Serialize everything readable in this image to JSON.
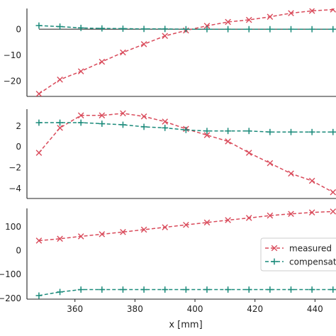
{
  "chart_data": [
    {
      "type": "line",
      "x": [
        348,
        355,
        362,
        369,
        376,
        383,
        390,
        397,
        404,
        411,
        418,
        425,
        432,
        439,
        446
      ],
      "series": [
        {
          "name": "measured",
          "values": [
            -25.0,
            -19.5,
            -16.3,
            -12.6,
            -9.0,
            -5.8,
            -2.6,
            -0.5,
            1.3,
            2.8,
            3.6,
            4.8,
            6.2,
            7.1,
            7.6
          ],
          "color": "#d94a5a",
          "marker": "x",
          "linestyle": "dashed"
        },
        {
          "name": "compensated",
          "values": [
            1.4,
            1.0,
            0.5,
            0.3,
            0.2,
            0.1,
            0.1,
            0.0,
            0.0,
            0.0,
            0.0,
            0.0,
            0.0,
            0.0,
            0.0
          ],
          "color": "#1a8a7a",
          "marker": "+",
          "linestyle": "dashed"
        }
      ],
      "reference_line": 0,
      "ylim": [
        -26,
        8
      ],
      "yticks": [
        0,
        -10,
        -20
      ],
      "ytick_labels": [
        "0",
        "−10",
        "−20"
      ],
      "ylabel": "",
      "xlabel": ""
    },
    {
      "type": "line",
      "x": [
        348,
        355,
        362,
        369,
        376,
        383,
        390,
        397,
        404,
        411,
        418,
        425,
        432,
        439,
        446
      ],
      "series": [
        {
          "name": "measured",
          "values": [
            -0.6,
            1.8,
            3.0,
            3.0,
            3.2,
            2.9,
            2.4,
            1.7,
            1.1,
            0.5,
            -0.6,
            -1.6,
            -2.6,
            -3.3,
            -4.4
          ],
          "color": "#d94a5a",
          "marker": "x",
          "linestyle": "dashed"
        },
        {
          "name": "compensated",
          "values": [
            2.3,
            2.3,
            2.3,
            2.2,
            2.1,
            1.9,
            1.8,
            1.6,
            1.5,
            1.5,
            1.5,
            1.4,
            1.4,
            1.4,
            1.4
          ],
          "color": "#1a8a7a",
          "marker": "+",
          "linestyle": "dashed"
        }
      ],
      "ylim": [
        -5,
        3.6
      ],
      "yticks": [
        2,
        0,
        -2,
        -4
      ],
      "ytick_labels": [
        "2",
        "0",
        "−2",
        "−4"
      ],
      "ylabel": "",
      "xlabel": ""
    },
    {
      "type": "line",
      "x": [
        348,
        355,
        362,
        369,
        376,
        383,
        390,
        397,
        404,
        411,
        418,
        425,
        432,
        439,
        446
      ],
      "series": [
        {
          "name": "measured",
          "values": [
            40,
            48,
            58,
            67,
            76,
            86,
            96,
            106,
            116,
            126,
            135,
            145,
            152,
            158,
            162
          ],
          "color": "#d94a5a",
          "marker": "x",
          "linestyle": "dashed"
        },
        {
          "name": "compensated",
          "values": [
            -190,
            -175,
            -165,
            -165,
            -165,
            -165,
            -165,
            -165,
            -165,
            -165,
            -165,
            -165,
            -165,
            -165,
            -165
          ],
          "color": "#1a8a7a",
          "marker": "+",
          "linestyle": "dashed"
        }
      ],
      "ylim": [
        -205,
        175
      ],
      "yticks": [
        100,
        0,
        -100,
        -200
      ],
      "ytick_labels": [
        "100",
        "0",
        "−100",
        "−200"
      ],
      "ylabel": "",
      "xlabel": "x [mm]",
      "xticks": [
        360,
        380,
        400,
        420,
        440
      ],
      "xtick_labels": [
        "360",
        "380",
        "400",
        "420",
        "440"
      ],
      "legend": {
        "placement": "right",
        "entries": [
          "measured",
          "compensat"
        ]
      }
    }
  ]
}
